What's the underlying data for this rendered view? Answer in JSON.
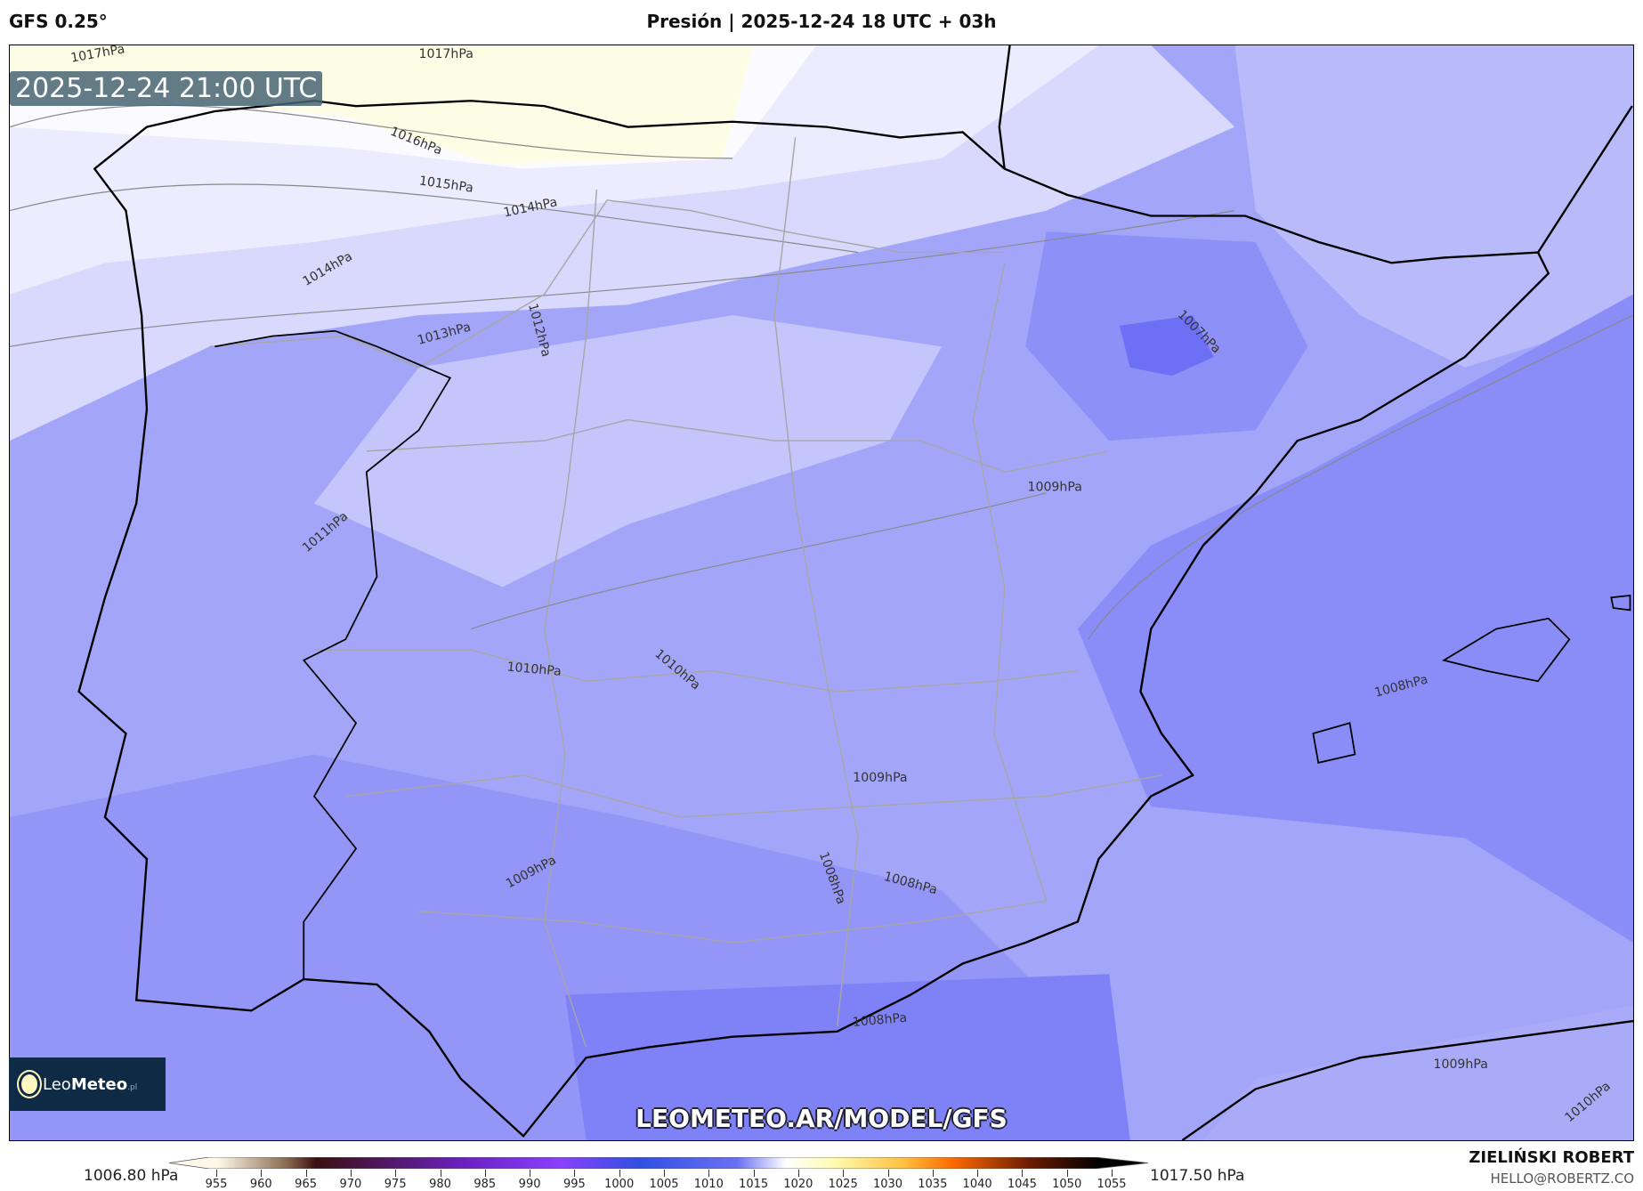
{
  "header": {
    "model": "GFS 0.25°",
    "title": "Presión | 2025-12-24 18 UTC + 03h"
  },
  "map": {
    "valid_time": "2025-12-24 21:00 UTC",
    "contour_labels": [
      "1017hPa",
      "1017hPa",
      "1016hPa",
      "1015hPa",
      "1014hPa",
      "1014hPa",
      "1013hPa",
      "1012hPa",
      "1011hPa",
      "1010hPa",
      "1010hPa",
      "1009hPa",
      "1009hPa",
      "1009hPa",
      "1008hPa",
      "1008hPa",
      "1008hPa",
      "1008hPa",
      "1007hPa",
      "1009hPa",
      "1010hPa"
    ],
    "colors": {
      "high": "#fdfde6",
      "mid": "#c3c5fb",
      "low": "#7b7ef6",
      "coast": "#000000",
      "borders": "#999999"
    }
  },
  "logo": {
    "brand_a": "Leo",
    "brand_b": "Meteo",
    "suffix": ".pl"
  },
  "watermark": "LEOMETEO.AR/MODEL/GFS",
  "colorbar": {
    "min_label": "1006.80 hPa",
    "max_label": "1017.50 hPa",
    "ticks": [
      "955",
      "960",
      "965",
      "970",
      "975",
      "980",
      "985",
      "990",
      "995",
      "1000",
      "1005",
      "1010",
      "1015",
      "1020",
      "1025",
      "1030",
      "1035",
      "1040",
      "1045",
      "1050",
      "1055"
    ]
  },
  "author": {
    "name": "ZIELIŃSKI ROBERT",
    "email": "HELLO@ROBERTZ.CO"
  }
}
